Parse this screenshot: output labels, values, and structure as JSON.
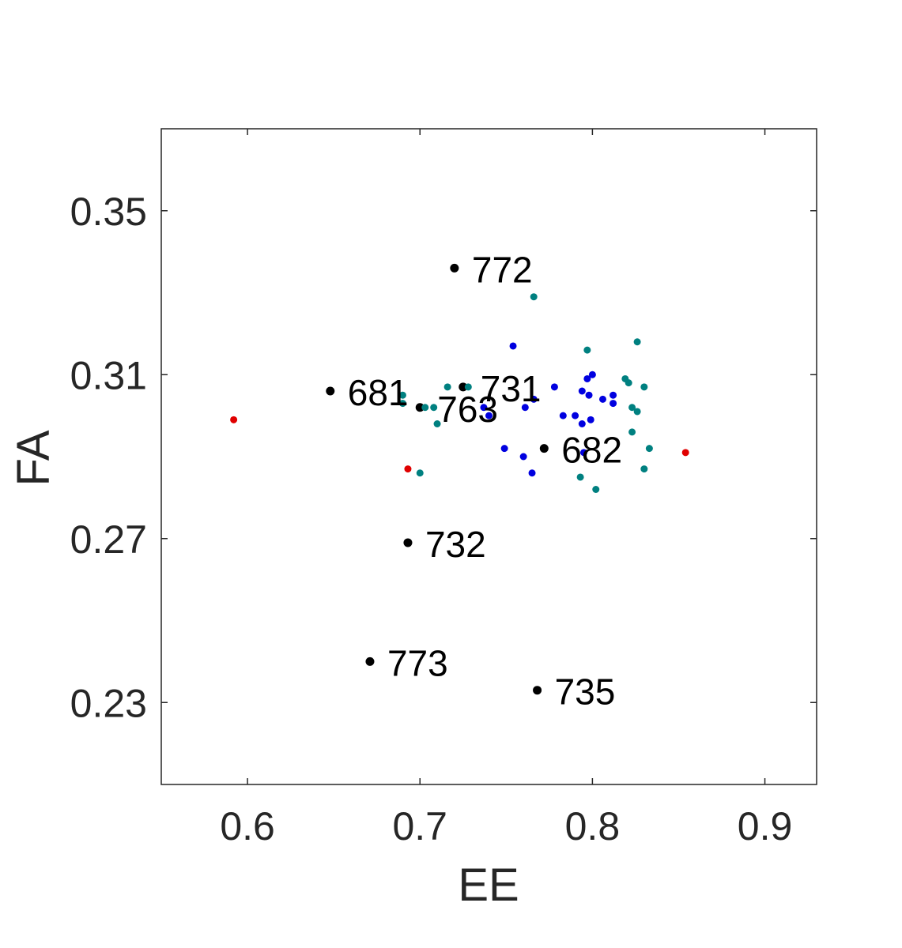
{
  "chart_data": {
    "type": "scatter",
    "title": "",
    "xlabel": "EE",
    "ylabel": "FA",
    "xlim": [
      0.55,
      0.93
    ],
    "ylim": [
      0.21,
      0.37
    ],
    "xticks": [
      "0.6",
      "0.7",
      "0.8",
      "0.9"
    ],
    "xtick_values": [
      0.6,
      0.7,
      0.8,
      0.9
    ],
    "yticks": [
      "0.23",
      "0.27",
      "0.31",
      "0.35"
    ],
    "ytick_values": [
      0.23,
      0.27,
      0.31,
      0.35
    ],
    "grid": false,
    "series": [
      {
        "color": "#000000",
        "labeled": true,
        "points": [
          {
            "x": 0.72,
            "y": 0.336,
            "label": "772"
          },
          {
            "x": 0.648,
            "y": 0.306,
            "label": "681"
          },
          {
            "x": 0.725,
            "y": 0.307,
            "label": "731"
          },
          {
            "x": 0.7,
            "y": 0.302,
            "label": "763"
          },
          {
            "x": 0.772,
            "y": 0.292,
            "label": "682"
          },
          {
            "x": 0.693,
            "y": 0.269,
            "label": "732"
          },
          {
            "x": 0.671,
            "y": 0.24,
            "label": "773"
          },
          {
            "x": 0.768,
            "y": 0.233,
            "label": "735"
          }
        ]
      },
      {
        "color": "#e00000",
        "labeled": false,
        "points": [
          {
            "x": 0.592,
            "y": 0.299
          },
          {
            "x": 0.693,
            "y": 0.287
          },
          {
            "x": 0.854,
            "y": 0.291
          }
        ]
      },
      {
        "color": "#0000e0",
        "labeled": false,
        "points": [
          {
            "x": 0.754,
            "y": 0.317
          },
          {
            "x": 0.8,
            "y": 0.31
          },
          {
            "x": 0.797,
            "y": 0.309
          },
          {
            "x": 0.778,
            "y": 0.307
          },
          {
            "x": 0.794,
            "y": 0.306
          },
          {
            "x": 0.798,
            "y": 0.305
          },
          {
            "x": 0.812,
            "y": 0.305
          },
          {
            "x": 0.806,
            "y": 0.304
          },
          {
            "x": 0.766,
            "y": 0.304
          },
          {
            "x": 0.812,
            "y": 0.303
          },
          {
            "x": 0.761,
            "y": 0.302
          },
          {
            "x": 0.737,
            "y": 0.302
          },
          {
            "x": 0.74,
            "y": 0.3
          },
          {
            "x": 0.783,
            "y": 0.3
          },
          {
            "x": 0.79,
            "y": 0.3
          },
          {
            "x": 0.799,
            "y": 0.299
          },
          {
            "x": 0.794,
            "y": 0.298
          },
          {
            "x": 0.749,
            "y": 0.292
          },
          {
            "x": 0.795,
            "y": 0.291
          },
          {
            "x": 0.76,
            "y": 0.29
          },
          {
            "x": 0.765,
            "y": 0.286
          }
        ]
      },
      {
        "color": "#008080",
        "labeled": false,
        "points": [
          {
            "x": 0.766,
            "y": 0.329
          },
          {
            "x": 0.826,
            "y": 0.318
          },
          {
            "x": 0.797,
            "y": 0.316
          },
          {
            "x": 0.819,
            "y": 0.309
          },
          {
            "x": 0.821,
            "y": 0.308
          },
          {
            "x": 0.83,
            "y": 0.307
          },
          {
            "x": 0.716,
            "y": 0.307
          },
          {
            "x": 0.728,
            "y": 0.307
          },
          {
            "x": 0.69,
            "y": 0.305
          },
          {
            "x": 0.69,
            "y": 0.303
          },
          {
            "x": 0.708,
            "y": 0.302
          },
          {
            "x": 0.703,
            "y": 0.302
          },
          {
            "x": 0.823,
            "y": 0.302
          },
          {
            "x": 0.826,
            "y": 0.301
          },
          {
            "x": 0.71,
            "y": 0.298
          },
          {
            "x": 0.823,
            "y": 0.296
          },
          {
            "x": 0.833,
            "y": 0.292
          },
          {
            "x": 0.83,
            "y": 0.287
          },
          {
            "x": 0.7,
            "y": 0.286
          },
          {
            "x": 0.793,
            "y": 0.285
          },
          {
            "x": 0.802,
            "y": 0.282
          }
        ]
      }
    ]
  }
}
